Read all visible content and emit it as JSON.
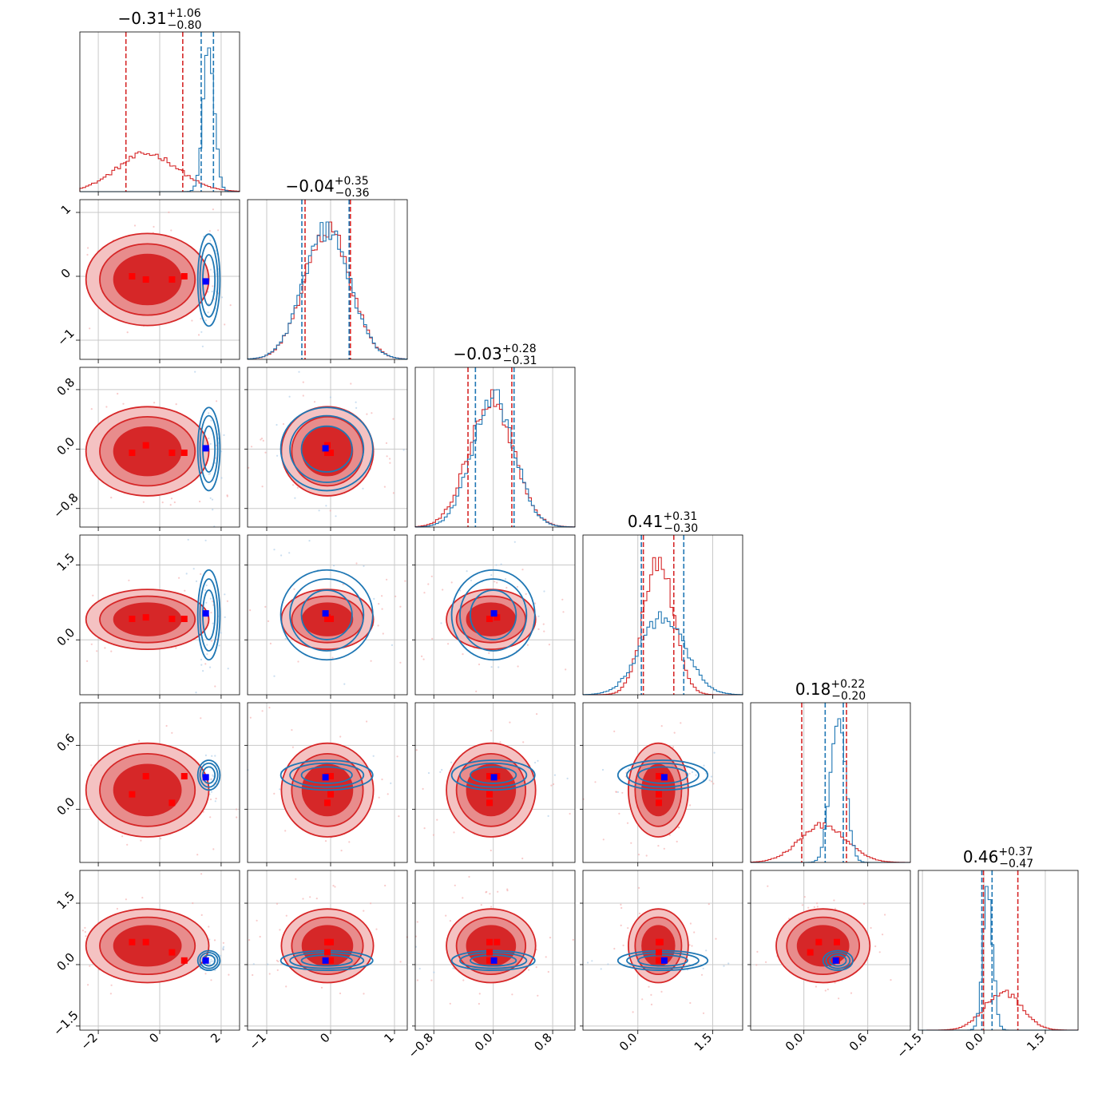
{
  "chart_data": {
    "type": "corner",
    "colors": {
      "red": "#d62728",
      "blue": "#1f77b4",
      "marker_red": "#ff0000",
      "marker_blue": "#0000ff",
      "grid": "#c8c8c8"
    },
    "grid": true,
    "params": [
      {
        "title": {
          "median": "−0.31",
          "plus": "+1.06",
          "minus": "−0.80"
        },
        "range": [
          -2.6,
          2.6
        ],
        "ticks": [
          -2,
          0,
          2
        ],
        "tick_labels": [
          "−2",
          "0",
          "2"
        ],
        "red": {
          "mean": -0.4,
          "sd": 1.0,
          "q": [
            -1.1,
            0.75
          ]
        },
        "blue": {
          "mean": 1.6,
          "sd": 0.18,
          "q": [
            1.35,
            1.75
          ]
        },
        "markers_red": [
          -0.9,
          -0.45,
          0.4,
          0.8
        ],
        "marker_blue": 1.5
      },
      {
        "title": {
          "median": "−0.04",
          "plus": "+0.35",
          "minus": "−0.36"
        },
        "range": [
          -1.3,
          1.2
        ],
        "ticks": [
          -1,
          0,
          1
        ],
        "tick_labels": [
          "−1",
          "0",
          "1"
        ],
        "red": {
          "mean": -0.05,
          "sd": 0.36,
          "q": [
            -0.4,
            0.31
          ]
        },
        "blue": {
          "mean": -0.06,
          "sd": 0.36,
          "q": [
            -0.45,
            0.29
          ]
        },
        "markers_red": [
          0.0,
          -0.05,
          -0.05,
          0.0
        ],
        "marker_blue": -0.08
      },
      {
        "title": {
          "median": "−0.03",
          "plus": "+0.28",
          "minus": "−0.31"
        },
        "range": [
          -1.05,
          1.1
        ],
        "ticks": [
          -0.8,
          0.0,
          0.8
        ],
        "tick_labels": [
          "−0.8",
          "0.0",
          "0.8"
        ],
        "red": {
          "mean": -0.03,
          "sd": 0.3,
          "q": [
            -0.34,
            0.25
          ]
        },
        "blue": {
          "mean": 0.0,
          "sd": 0.28,
          "q": [
            -0.24,
            0.28
          ]
        },
        "markers_red": [
          -0.05,
          0.05,
          -0.05,
          -0.05
        ],
        "marker_blue": 0.01
      },
      {
        "title": {
          "median": "0.41",
          "plus": "+0.31",
          "minus": "−0.30"
        },
        "range": [
          -1.1,
          2.1
        ],
        "ticks": [
          0.0,
          1.5
        ],
        "tick_labels": [
          "0.0",
          "1.5"
        ],
        "red": {
          "mean": 0.41,
          "sd": 0.3,
          "q": [
            0.11,
            0.72
          ]
        },
        "blue": {
          "mean": 0.5,
          "sd": 0.45,
          "q": [
            0.07,
            0.92
          ]
        },
        "markers_red": [
          0.42,
          0.45,
          0.42,
          0.42
        ],
        "marker_blue": 0.53
      },
      {
        "title": {
          "median": "0.18",
          "plus": "+0.22",
          "minus": "−0.20"
        },
        "range": [
          -0.5,
          1.0
        ],
        "ticks": [
          0.0,
          0.6
        ],
        "tick_labels": [
          "0.0",
          "0.6"
        ],
        "red": {
          "mean": 0.18,
          "sd": 0.22,
          "q": [
            -0.02,
            0.4
          ]
        },
        "blue": {
          "mean": 0.32,
          "sd": 0.07,
          "q": [
            0.2,
            0.37
          ]
        },
        "markers_red": [
          0.14,
          0.31,
          0.06,
          0.31
        ],
        "marker_blue": 0.3
      },
      {
        "title": {
          "median": "0.46",
          "plus": "+0.37",
          "minus": "−0.47"
        },
        "range": [
          -1.6,
          2.3
        ],
        "ticks": [
          -1.5,
          0.0,
          1.5
        ],
        "tick_labels": [
          "−1.5",
          "0.0",
          "1.5"
        ],
        "red": {
          "mean": 0.46,
          "sd": 0.45,
          "q": [
            -0.01,
            0.83
          ]
        },
        "blue": {
          "mean": 0.1,
          "sd": 0.12,
          "q": [
            -0.05,
            0.2
          ]
        },
        "markers_red": [
          0.55,
          0.55,
          0.3,
          0.1
        ],
        "marker_blue": 0.1
      }
    ]
  }
}
